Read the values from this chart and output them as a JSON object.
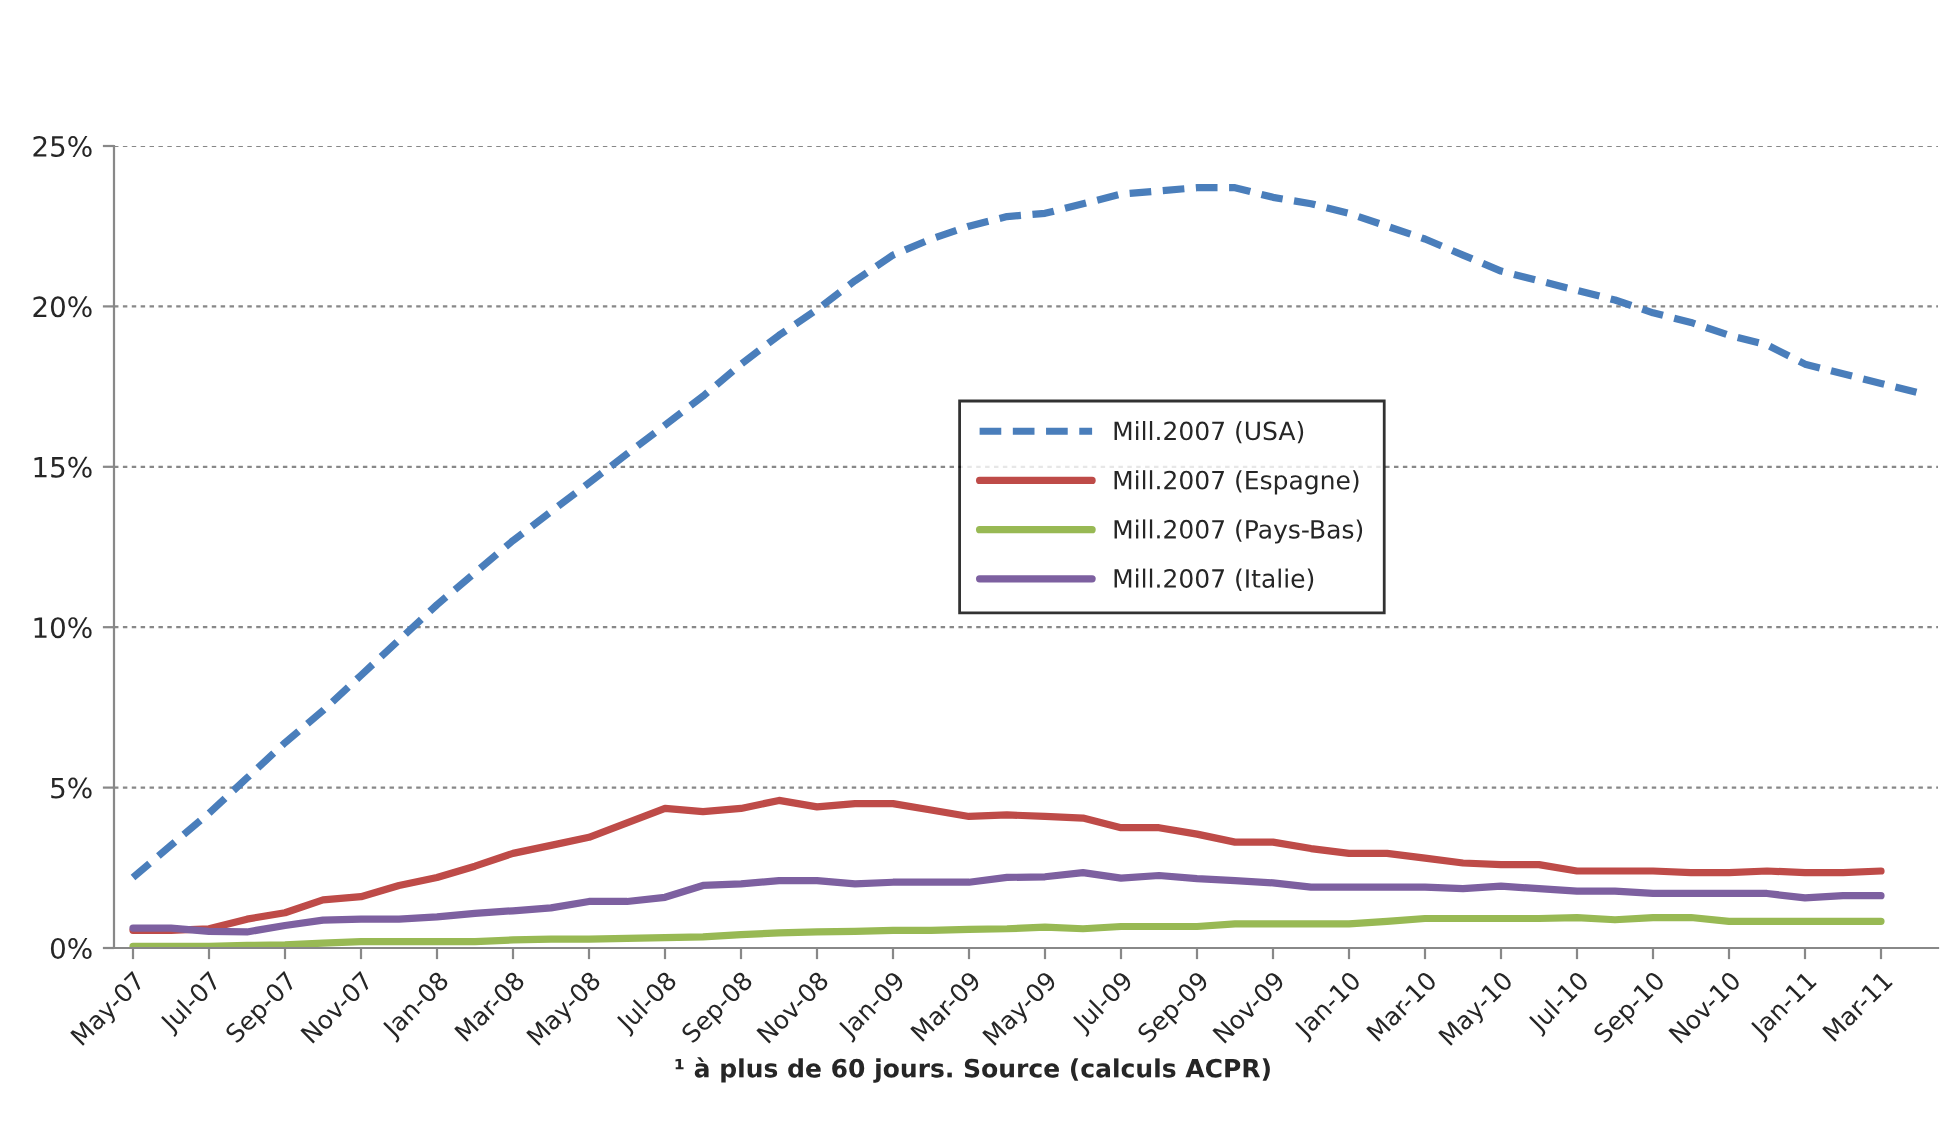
{
  "chart_data": {
    "type": "line",
    "categories": [
      "May-07",
      null,
      "Jul-07",
      null,
      "Sep-07",
      null,
      "Nov-07",
      null,
      "Jan-08",
      null,
      "Mar-08",
      null,
      "May-08",
      null,
      "Jul-08",
      null,
      "Sep-08",
      null,
      "Nov-08",
      null,
      "Jan-09",
      null,
      "Mar-09",
      null,
      "May-09",
      null,
      "Jul-09",
      null,
      "Sep-09",
      null,
      "Nov-09",
      null,
      "Jan-10",
      null,
      "Mar-10",
      null,
      "May-10",
      null,
      "Jul-10",
      null,
      "Sep-10",
      null,
      "Nov-10",
      null,
      "Jan-11",
      null,
      "Mar-11",
      null
    ],
    "series": [
      {
        "name": "Mill.2007 (USA)",
        "color": "#4a7ebb",
        "line_style": "dashed",
        "values": [
          2.2,
          3.2,
          4.2,
          5.3,
          6.4,
          7.4,
          8.5,
          9.6,
          10.7,
          11.7,
          12.7,
          13.6,
          14.5,
          15.4,
          16.3,
          17.2,
          18.2,
          19.1,
          19.9,
          20.8,
          21.6,
          22.1,
          22.5,
          22.8,
          22.9,
          23.2,
          23.5,
          23.6,
          23.7,
          23.7,
          23.4,
          23.2,
          22.9,
          22.5,
          22.1,
          21.6,
          21.1,
          20.8,
          20.5,
          20.2,
          19.8,
          19.5,
          19.1,
          18.8,
          18.2,
          17.9,
          17.6,
          17.3
        ]
      },
      {
        "name": "Mill.2007 (Espagne)",
        "color": "#be4b48",
        "line_style": "solid",
        "values": [
          0.55,
          0.55,
          0.6,
          0.9,
          1.1,
          1.5,
          1.6,
          1.95,
          2.2,
          2.55,
          2.95,
          3.2,
          3.45,
          3.9,
          4.35,
          4.25,
          4.35,
          4.6,
          4.4,
          4.5,
          4.5,
          4.3,
          4.1,
          4.15,
          4.1,
          4.05,
          3.75,
          3.75,
          3.55,
          3.3,
          3.3,
          3.1,
          2.95,
          2.95,
          2.8,
          2.65,
          2.6,
          2.6,
          2.4,
          2.4,
          2.4,
          2.35,
          2.35,
          2.4,
          2.35,
          2.35,
          2.4,
          null
        ]
      },
      {
        "name": "Mill.2007 (Pays-Bas)",
        "color": "#98b954",
        "line_style": "solid",
        "values": [
          0.05,
          0.05,
          0.05,
          0.08,
          0.1,
          0.15,
          0.2,
          0.2,
          0.2,
          0.2,
          0.25,
          0.28,
          0.28,
          0.3,
          0.32,
          0.35,
          0.42,
          0.47,
          0.5,
          0.52,
          0.55,
          0.55,
          0.58,
          0.6,
          0.65,
          0.6,
          0.67,
          0.67,
          0.67,
          0.75,
          0.75,
          0.75,
          0.75,
          0.83,
          0.92,
          0.92,
          0.92,
          0.92,
          0.95,
          0.88,
          0.95,
          0.95,
          0.83,
          0.83,
          0.83,
          0.83,
          0.83,
          null
        ]
      },
      {
        "name": "Mill.2007 (Italie)",
        "color": "#7d60a0",
        "line_style": "solid",
        "values": [
          0.62,
          0.62,
          0.52,
          0.5,
          0.7,
          0.87,
          0.9,
          0.9,
          0.97,
          1.08,
          1.16,
          1.25,
          1.45,
          1.45,
          1.58,
          1.95,
          2.0,
          2.1,
          2.1,
          2.0,
          2.05,
          2.05,
          2.05,
          2.2,
          2.22,
          2.35,
          2.18,
          2.26,
          2.16,
          2.1,
          2.03,
          1.9,
          1.9,
          1.9,
          1.9,
          1.85,
          1.93,
          1.85,
          1.77,
          1.77,
          1.7,
          1.7,
          1.7,
          1.7,
          1.56,
          1.63,
          1.63,
          null
        ]
      }
    ],
    "ylim": [
      0,
      25
    ],
    "yticks": [
      {
        "value": 0,
        "label": "0%"
      },
      {
        "value": 5,
        "label": "5%"
      },
      {
        "value": 10,
        "label": "10%"
      },
      {
        "value": 15,
        "label": "15%"
      },
      {
        "value": 20,
        "label": "20%"
      },
      {
        "value": 25,
        "label": "25%"
      }
    ],
    "grid": "y",
    "legend": "center",
    "marker": "none",
    "annotations": [
      "¹ à plus de 60 jours. Source (calculs ACPR)"
    ]
  }
}
